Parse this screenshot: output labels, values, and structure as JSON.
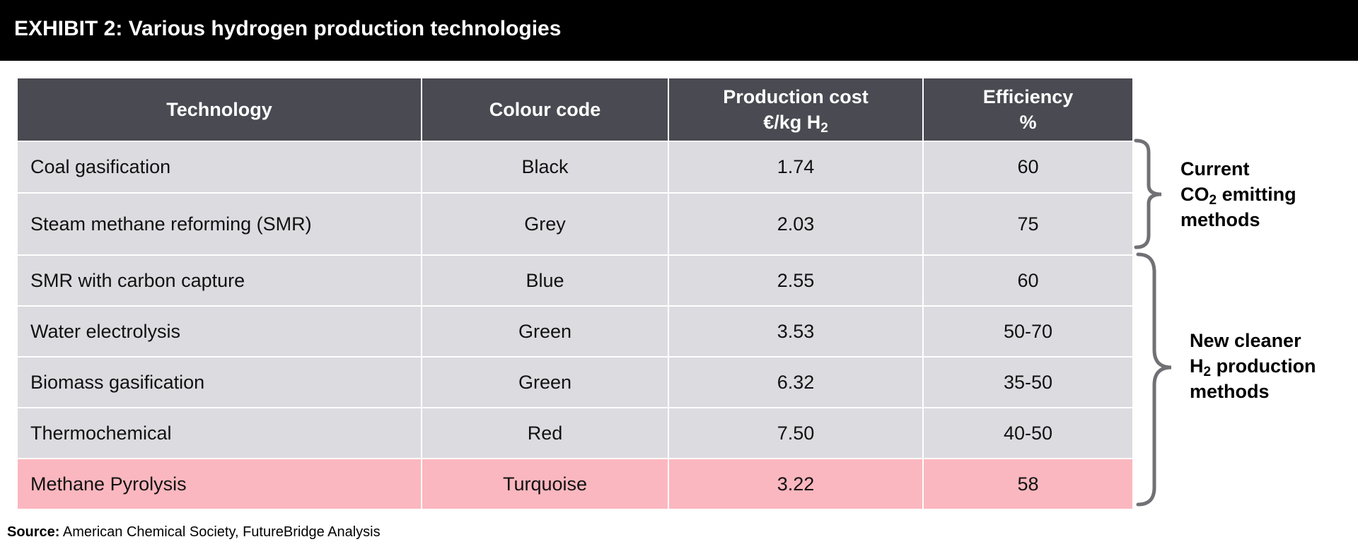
{
  "title": "EXHIBIT 2: Various hydrogen production technologies",
  "table": {
    "headers": {
      "technology": "Technology",
      "colour_code": "Colour code",
      "cost_line1": "Production cost",
      "cost_line2": "€/kg H",
      "cost_sub": "2",
      "eff_line1": "Efficiency",
      "eff_line2": "%"
    },
    "rows": [
      {
        "technology": "Coal gasification",
        "colour": "Black",
        "cost": "1.74",
        "efficiency": "60"
      },
      {
        "technology": "Steam methane reforming (SMR)",
        "colour": "Grey",
        "cost": "2.03",
        "efficiency": "75"
      },
      {
        "technology": "SMR with carbon capture",
        "colour": "Blue",
        "cost": "2.55",
        "efficiency": "60"
      },
      {
        "technology": "Water electrolysis",
        "colour": "Green",
        "cost": "3.53",
        "efficiency": "50-70"
      },
      {
        "technology": "Biomass gasification",
        "colour": "Green",
        "cost": "6.32",
        "efficiency": "35-50"
      },
      {
        "technology": "Thermochemical",
        "colour": "Red",
        "cost": "7.50",
        "efficiency": "40-50"
      },
      {
        "technology": "Methane Pyrolysis",
        "colour": "Turquoise",
        "cost": "3.22",
        "efficiency": "58"
      }
    ]
  },
  "groups": {
    "current": {
      "line1": "Current",
      "line2_pre": "CO",
      "line2_sub": "2",
      "line2_post": " emitting",
      "line3": "methods"
    },
    "cleaner": {
      "line1": "New cleaner",
      "line2_pre": "H",
      "line2_sub": "2",
      "line2_post": " production",
      "line3": "methods"
    }
  },
  "source": {
    "label": "Source:",
    "text": " American Chemical Society, FutureBridge Analysis"
  },
  "colors": {
    "header_bg": "#4a4a52",
    "row_bg": "#dcdbe0",
    "highlight_bg": "#fbb7bf",
    "brace": "#707075"
  }
}
